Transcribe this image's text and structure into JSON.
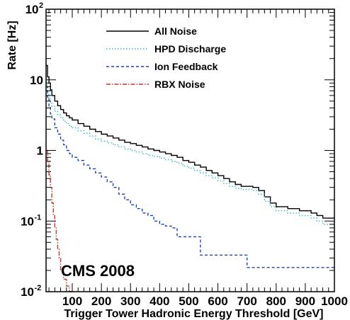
{
  "chart_data": {
    "type": "line",
    "step": true,
    "xlabel": "Trigger Tower Hadronic Energy Threshold [GeV]",
    "ylabel": "Rate [Hz]",
    "xlim": [
      10,
      1000
    ],
    "ylim": [
      0.01,
      100
    ],
    "ylog": true,
    "x_ticks": [
      100,
      200,
      300,
      400,
      500,
      600,
      700,
      800,
      900,
      1000
    ],
    "x_tick_labels": [
      "100",
      "200",
      "300",
      "400",
      "500",
      "600",
      "700",
      "800",
      "900",
      "1000"
    ],
    "y_ticks": [
      {
        "value": 0.01,
        "base": "10",
        "exp": "-2"
      },
      {
        "value": 0.1,
        "base": "10",
        "exp": "-1"
      },
      {
        "value": 1,
        "base": "1",
        "exp": ""
      },
      {
        "value": 10,
        "base": "10",
        "exp": ""
      },
      {
        "value": 100,
        "base": "10",
        "exp": "2"
      }
    ],
    "legend_position": "top",
    "annotation": "CMS 2008",
    "series": [
      {
        "name": "All Noise",
        "color": "#000000",
        "style": "solid",
        "x": [
          10,
          15,
          20,
          25,
          30,
          40,
          50,
          60,
          70,
          80,
          90,
          100,
          120,
          140,
          160,
          180,
          200,
          220,
          240,
          260,
          280,
          300,
          320,
          340,
          360,
          380,
          400,
          420,
          440,
          460,
          480,
          500,
          520,
          540,
          560,
          580,
          600,
          620,
          640,
          660,
          680,
          700,
          720,
          740,
          760,
          780,
          800,
          820,
          840,
          860,
          880,
          900,
          920,
          940,
          960,
          980,
          1000
        ],
        "y": [
          16,
          11,
          9,
          7.2,
          6,
          5,
          4.3,
          3.8,
          3.4,
          3.1,
          2.9,
          2.7,
          2.4,
          2.2,
          2.0,
          1.85,
          1.7,
          1.6,
          1.5,
          1.4,
          1.3,
          1.25,
          1.18,
          1.12,
          1.05,
          1.0,
          0.95,
          0.9,
          0.85,
          0.8,
          0.72,
          0.68,
          0.62,
          0.58,
          0.52,
          0.48,
          0.44,
          0.4,
          0.36,
          0.33,
          0.31,
          0.31,
          0.3,
          0.27,
          0.22,
          0.18,
          0.16,
          0.16,
          0.15,
          0.15,
          0.14,
          0.14,
          0.13,
          0.12,
          0.11,
          0.11,
          0.11
        ]
      },
      {
        "name": "HPD Discharge",
        "color": "#33b9c9",
        "style": "dotted",
        "x": [
          10,
          15,
          20,
          25,
          30,
          40,
          50,
          60,
          70,
          80,
          90,
          100,
          120,
          140,
          160,
          180,
          200,
          220,
          240,
          260,
          280,
          300,
          320,
          340,
          360,
          380,
          400,
          420,
          440,
          460,
          480,
          500,
          520,
          540,
          560,
          580,
          600,
          620,
          640,
          660,
          680,
          700,
          720,
          740,
          760,
          780,
          800,
          820,
          840,
          860,
          880,
          900,
          920,
          940,
          960,
          980,
          1000
        ],
        "y": [
          9,
          6.5,
          5.5,
          4.8,
          4.2,
          3.6,
          3.2,
          2.9,
          2.6,
          2.4,
          2.2,
          2.1,
          1.9,
          1.75,
          1.6,
          1.45,
          1.35,
          1.28,
          1.2,
          1.12,
          1.05,
          1.0,
          0.95,
          0.9,
          0.85,
          0.82,
          0.78,
          0.74,
          0.7,
          0.66,
          0.6,
          0.56,
          0.52,
          0.48,
          0.44,
          0.41,
          0.37,
          0.34,
          0.31,
          0.29,
          0.28,
          0.28,
          0.27,
          0.24,
          0.19,
          0.16,
          0.14,
          0.14,
          0.13,
          0.13,
          0.12,
          0.12,
          0.11,
          0.1,
          0.09,
          0.09,
          0.09
        ]
      },
      {
        "name": "Ion Feedback",
        "color": "#1f3fbf",
        "style": "dashed",
        "x": [
          10,
          15,
          20,
          25,
          30,
          40,
          50,
          60,
          70,
          80,
          90,
          100,
          120,
          140,
          160,
          180,
          200,
          220,
          240,
          260,
          280,
          300,
          320,
          340,
          360,
          380,
          400,
          420,
          440,
          460,
          480,
          500,
          520,
          540,
          560,
          580,
          600,
          620,
          640,
          660,
          680,
          700,
          720,
          740,
          760,
          780,
          800,
          820,
          840,
          860,
          880,
          900,
          920,
          940,
          960,
          980,
          1000
        ],
        "y": [
          8,
          5.5,
          4.2,
          3.3,
          2.8,
          2.1,
          1.7,
          1.4,
          1.2,
          1.0,
          0.9,
          0.8,
          0.72,
          0.62,
          0.55,
          0.48,
          0.42,
          0.36,
          0.3,
          0.24,
          0.2,
          0.17,
          0.15,
          0.13,
          0.12,
          0.1,
          0.09,
          0.085,
          0.08,
          0.06,
          0.06,
          0.06,
          0.06,
          0.033,
          0.033,
          0.033,
          0.033,
          0.033,
          0.033,
          0.033,
          0.033,
          0.022,
          0.022,
          0.022,
          0.022,
          0.022,
          0.022,
          0.022,
          0.022,
          0.022,
          0.022,
          0.022,
          0.022,
          0.022,
          0.022,
          0.022,
          0.022
        ]
      },
      {
        "name": "RBX Noise",
        "color": "#c0392b",
        "style": "dashdot",
        "x": [
          10,
          15,
          20,
          25,
          30,
          35,
          40,
          45,
          50,
          55,
          60,
          70,
          80,
          90
        ],
        "y": [
          1.0,
          0.7,
          0.45,
          0.3,
          0.18,
          0.12,
          0.08,
          0.055,
          0.04,
          0.03,
          0.02,
          0.015,
          0.012,
          0.01
        ]
      }
    ]
  }
}
